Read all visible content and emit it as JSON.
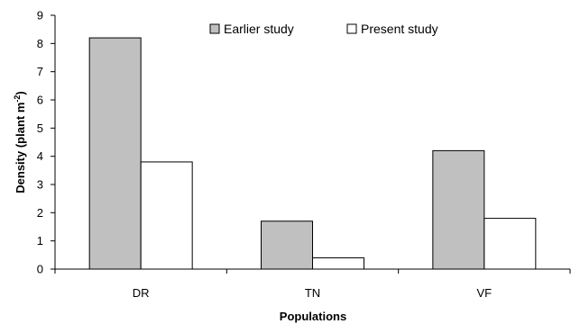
{
  "chart_data": {
    "type": "bar",
    "categories": [
      "DR",
      "TN",
      "VF"
    ],
    "series": [
      {
        "name": "Earlier study",
        "values": [
          8.2,
          1.7,
          4.2
        ],
        "color": "#c0c0c0"
      },
      {
        "name": "Present study",
        "values": [
          3.8,
          0.4,
          1.8
        ],
        "color": "#ffffff"
      }
    ],
    "xlabel": "Populations",
    "ylabel_main": "Density (plant m",
    "ylabel_sup": "-2",
    "ylabel_close": ")",
    "ylim": [
      0,
      9
    ],
    "yticks": [
      "0",
      "1",
      "2",
      "3",
      "4",
      "5",
      "6",
      "7",
      "8",
      "9"
    ],
    "grid": false,
    "legend_position": "top-right"
  }
}
